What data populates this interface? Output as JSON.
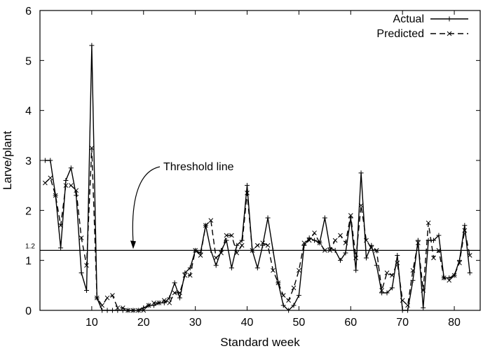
{
  "chart_data": {
    "type": "line",
    "xlabel": "Standard week",
    "ylabel": "Larve/plant",
    "xlim": [
      0,
      85
    ],
    "ylim": [
      0,
      6
    ],
    "x_ticks": [
      10,
      20,
      30,
      40,
      50,
      60,
      70,
      80
    ],
    "y_ticks": [
      0,
      1,
      2,
      3,
      4,
      5,
      6
    ],
    "threshold": {
      "value": 1.2,
      "label": "1.2",
      "annotation": "Threshold line",
      "annotation_x": 18
    },
    "legend": {
      "position": "top-right"
    },
    "grid": false,
    "x": [
      1,
      2,
      3,
      4,
      5,
      6,
      7,
      8,
      9,
      10,
      11,
      12,
      13,
      14,
      15,
      16,
      17,
      18,
      19,
      20,
      21,
      22,
      23,
      24,
      25,
      26,
      27,
      28,
      29,
      30,
      31,
      32,
      33,
      34,
      35,
      36,
      37,
      38,
      39,
      40,
      41,
      42,
      43,
      44,
      45,
      46,
      47,
      48,
      49,
      50,
      51,
      52,
      53,
      54,
      55,
      56,
      57,
      58,
      59,
      60,
      61,
      62,
      63,
      64,
      65,
      66,
      67,
      68,
      69,
      70,
      71,
      72,
      73,
      74,
      75,
      76,
      77,
      78,
      79,
      80,
      81,
      82,
      83
    ],
    "series": [
      {
        "name": "Actual",
        "style": "solid",
        "marker": "+",
        "values": [
          3.0,
          3.0,
          2.3,
          1.25,
          2.6,
          2.85,
          2.3,
          0.75,
          0.4,
          5.3,
          0.25,
          0.0,
          0.0,
          0.0,
          0.0,
          0.0,
          0.0,
          0.0,
          0.0,
          0.05,
          0.1,
          0.1,
          0.15,
          0.15,
          0.25,
          0.55,
          0.25,
          0.75,
          0.85,
          1.2,
          1.15,
          1.7,
          1.2,
          0.9,
          1.2,
          1.4,
          0.85,
          1.3,
          1.4,
          2.5,
          1.2,
          0.85,
          1.3,
          1.85,
          1.2,
          0.55,
          0.1,
          0.0,
          0.1,
          0.3,
          1.3,
          1.45,
          1.4,
          1.35,
          1.85,
          1.25,
          1.2,
          1.0,
          1.15,
          1.85,
          0.8,
          2.75,
          1.05,
          1.3,
          0.9,
          0.35,
          0.35,
          0.45,
          1.1,
          0.0,
          0.0,
          0.6,
          1.4,
          0.05,
          1.4,
          1.4,
          1.5,
          0.65,
          0.65,
          0.7,
          1.0,
          1.7,
          0.75
        ]
      },
      {
        "name": "Predicted",
        "style": "dashed",
        "marker": "x",
        "values": [
          2.55,
          2.65,
          2.3,
          1.7,
          2.5,
          2.5,
          2.4,
          1.45,
          0.9,
          3.25,
          0.25,
          0.1,
          0.25,
          0.3,
          0.05,
          0.05,
          0.0,
          0.0,
          0.0,
          0.0,
          0.1,
          0.15,
          0.15,
          0.2,
          0.15,
          0.35,
          0.35,
          0.7,
          0.7,
          1.2,
          1.1,
          1.7,
          1.8,
          1.05,
          1.15,
          1.5,
          1.5,
          1.15,
          1.3,
          2.35,
          1.2,
          1.3,
          1.35,
          1.3,
          0.8,
          0.55,
          0.3,
          0.2,
          0.45,
          0.8,
          1.35,
          1.4,
          1.55,
          1.35,
          1.2,
          1.2,
          1.4,
          1.5,
          1.35,
          1.9,
          1.05,
          2.1,
          1.4,
          1.25,
          1.2,
          0.4,
          0.75,
          0.7,
          0.95,
          0.2,
          0.1,
          0.8,
          1.35,
          0.4,
          1.75,
          1.05,
          1.2,
          0.65,
          0.6,
          0.7,
          0.95,
          1.6,
          1.1
        ]
      }
    ]
  }
}
